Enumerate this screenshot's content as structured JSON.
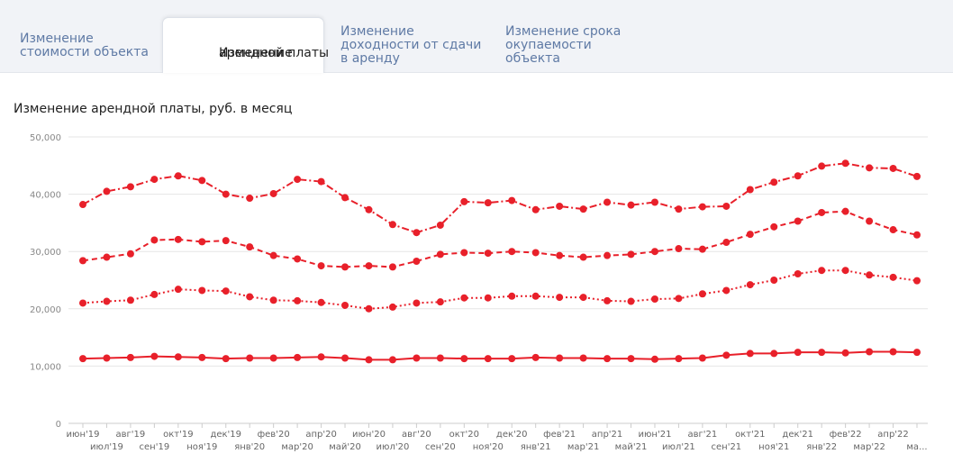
{
  "tabs": [
    {
      "label_1": "Изменение",
      "label_2": "стоимости объекта",
      "label_3": "",
      "active": false
    },
    {
      "label_1": "Изменение",
      "label_2": "арендной платы",
      "label_3": "",
      "active": true
    },
    {
      "label_1": "Изменение",
      "label_2": "доходности от сдачи",
      "label_3": "в аренду",
      "active": false
    },
    {
      "label_1": "Изменение срока",
      "label_2": "окупаемости",
      "label_3": "объекта",
      "active": false
    }
  ],
  "chart_title": "Изменение арендной платы, руб. в месяц",
  "chart_data": {
    "type": "line",
    "title": "Изменение арендной платы, руб. в месяц",
    "ylim": [
      0,
      50000
    ],
    "yticks": [
      "0",
      "10,000",
      "20,000",
      "30,000",
      "40,000",
      "50,000"
    ],
    "grid": true,
    "color": "#e8202a",
    "categories": [
      "июн'19",
      "июл'19",
      "авг'19",
      "сен'19",
      "окт'19",
      "ноя'19",
      "дек'19",
      "янв'20",
      "фев'20",
      "мар'20",
      "апр'20",
      "май'20",
      "июн'20",
      "июл'20",
      "авг'20",
      "сен'20",
      "окт'20",
      "ноя'20",
      "дек'20",
      "янв'21",
      "фев'21",
      "мар'21",
      "апр'21",
      "май'21",
      "июн'21",
      "июл'21",
      "авг'21",
      "сен'21",
      "окт'21",
      "ноя'21",
      "дек'21",
      "янв'22",
      "фев'22",
      "мар'22",
      "апр'22",
      "ма..."
    ],
    "series": [
      {
        "dash": "dashdot",
        "values": [
          38200,
          40500,
          41300,
          42600,
          43200,
          42400,
          40000,
          39300,
          40100,
          42600,
          42200,
          39400,
          37300,
          34700,
          33300,
          34600,
          38700,
          38500,
          38900,
          37300,
          37900,
          37400,
          38600,
          38100,
          38600,
          37400,
          37800,
          37900,
          40800,
          42100,
          43200,
          44900,
          45400,
          44600,
          44500,
          43100
        ]
      },
      {
        "dash": "dashed",
        "values": [
          28400,
          29000,
          29600,
          32000,
          32100,
          31700,
          31900,
          30800,
          29300,
          28700,
          27500,
          27300,
          27500,
          27300,
          28300,
          29500,
          29800,
          29700,
          30000,
          29800,
          29300,
          29000,
          29300,
          29500,
          30000,
          30500,
          30400,
          31600,
          33000,
          34300,
          35300,
          36800,
          37000,
          35300,
          33800,
          32900
        ]
      },
      {
        "dash": "dotted",
        "values": [
          21000,
          21300,
          21500,
          22500,
          23400,
          23200,
          23100,
          22100,
          21500,
          21400,
          21100,
          20600,
          20000,
          20300,
          21000,
          21200,
          21900,
          21900,
          22200,
          22200,
          22000,
          22000,
          21400,
          21300,
          21700,
          21800,
          22600,
          23200,
          24200,
          25000,
          26100,
          26700,
          26700,
          25900,
          25500,
          24900
        ]
      },
      {
        "dash": "solid",
        "values": [
          11300,
          11400,
          11500,
          11700,
          11600,
          11500,
          11300,
          11400,
          11400,
          11500,
          11600,
          11400,
          11100,
          11100,
          11400,
          11400,
          11300,
          11300,
          11300,
          11500,
          11400,
          11400,
          11300,
          11300,
          11200,
          11300,
          11400,
          11900,
          12200,
          12200,
          12400,
          12400,
          12300,
          12500,
          12500,
          12400
        ]
      }
    ]
  }
}
